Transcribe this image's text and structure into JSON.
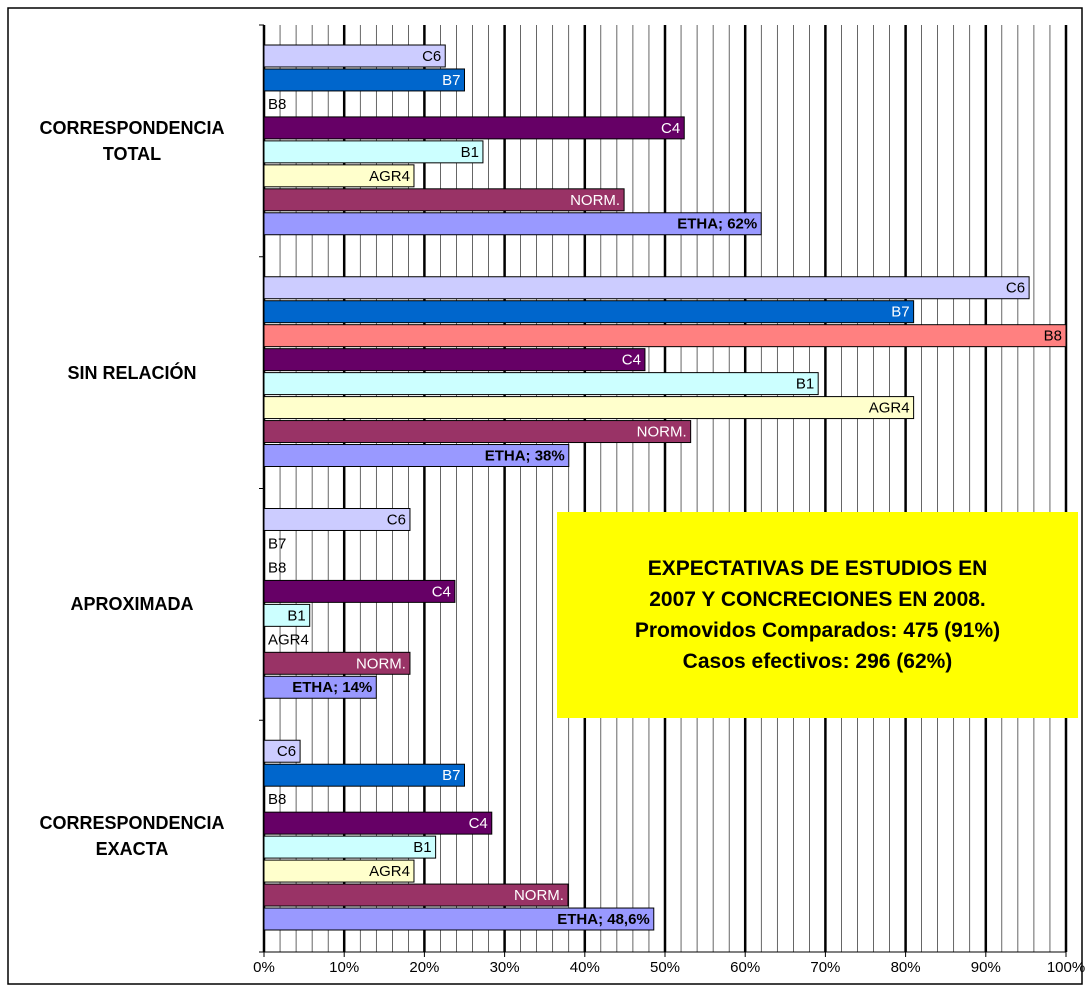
{
  "chart_data": {
    "type": "hbar",
    "categories": [
      "CORRESPONDENCIA EXACTA",
      "APROXIMADA",
      "SIN RELACIÓN",
      "CORRESPONDENCIA TOTAL"
    ],
    "series": [
      {
        "name": "ETHA",
        "color": "#9999ff",
        "values": [
          48.6,
          14,
          38,
          62
        ],
        "value_labels": [
          "ETHA; 48,6%",
          "ETHA; 14%",
          "ETHA; 38%",
          "ETHA; 62%"
        ]
      },
      {
        "name": "NORM.",
        "color": "#993366",
        "values": [
          37.9,
          18.2,
          53.2,
          44.9
        ]
      },
      {
        "name": "AGR4",
        "color": "#ffffcc",
        "values": [
          18.7,
          0,
          81,
          18.7
        ]
      },
      {
        "name": "B1",
        "color": "#ccffff",
        "values": [
          21.4,
          5.7,
          69.1,
          27.3
        ]
      },
      {
        "name": "C4",
        "color": "#660066",
        "values": [
          28.4,
          23.8,
          47.5,
          52.4
        ]
      },
      {
        "name": "B8",
        "color": "#ff8080",
        "values": [
          0,
          0,
          100,
          0
        ]
      },
      {
        "name": "B7",
        "color": "#0066cc",
        "values": [
          25,
          0,
          81,
          25
        ]
      },
      {
        "name": "C6",
        "color": "#ccccff",
        "values": [
          4.5,
          18.2,
          95.4,
          22.6
        ]
      }
    ],
    "xlim": [
      0,
      100
    ],
    "xticks": [
      {
        "value": 0,
        "label": "0%"
      },
      {
        "value": 10,
        "label": "10%"
      },
      {
        "value": 20,
        "label": "20%"
      },
      {
        "value": 30,
        "label": "30%"
      },
      {
        "value": 40,
        "label": "40%"
      },
      {
        "value": 50,
        "label": "50%"
      },
      {
        "value": 60,
        "label": "60%"
      },
      {
        "value": 70,
        "label": "70%"
      },
      {
        "value": 80,
        "label": "80%"
      },
      {
        "value": 90,
        "label": "90%"
      },
      {
        "value": 100,
        "label": "100%"
      }
    ],
    "xminorticks": [
      2,
      4,
      6,
      8,
      12,
      14,
      16,
      18,
      22,
      24,
      26,
      28,
      32,
      34,
      36,
      38,
      42,
      44,
      46,
      48,
      52,
      54,
      56,
      58,
      62,
      64,
      66,
      68,
      72,
      74,
      76,
      78,
      82,
      84,
      86,
      88,
      92,
      94,
      96,
      98
    ],
    "grid": true,
    "annotation": [
      "EXPECTATIVAS DE ESTUDIOS EN",
      "2007 Y CONCRECIONES EN 2008.",
      "Promovidos Comparados: 475 (91%)",
      "Casos efectivos: 296 (62%)"
    ]
  }
}
